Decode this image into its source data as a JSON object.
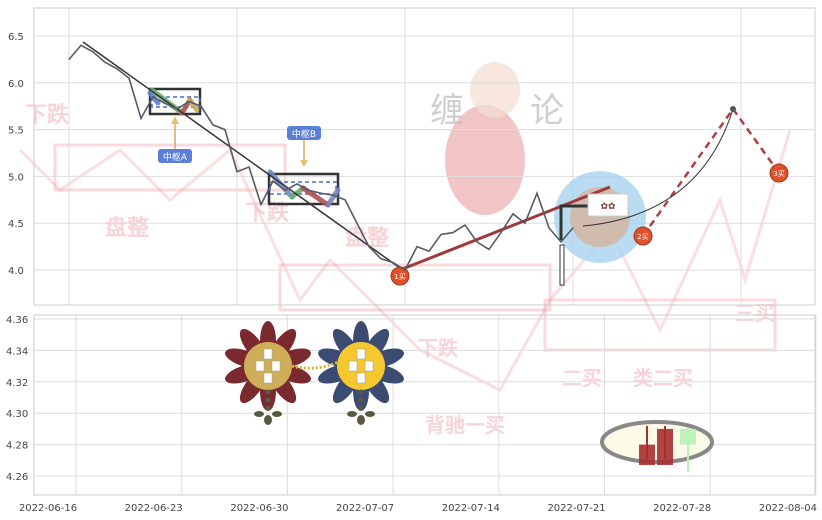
{
  "chart_data": [
    {
      "type": "line",
      "panel": "top",
      "yticks": [
        6.5,
        6.0,
        5.5,
        5.0,
        4.5,
        4.0
      ],
      "ylim": [
        3.7,
        6.8
      ],
      "xlim": [
        "2022-06-16",
        "2022-08-04"
      ],
      "grid": true,
      "series": [
        {
          "x": [
            "2022-06-16",
            "2022-06-17",
            "2022-06-18",
            "2022-06-19",
            "2022-06-20",
            "2022-06-21",
            "2022-06-22",
            "2022-06-23",
            "2022-06-24",
            "2022-06-25",
            "2022-06-26",
            "2022-06-27",
            "2022-06-28",
            "2022-06-29",
            "2022-06-30",
            "2022-07-01",
            "2022-07-02",
            "2022-07-03",
            "2022-07-04",
            "2022-07-05",
            "2022-07-06",
            "2022-07-07",
            "2022-07-08",
            "2022-07-09",
            "2022-07-10",
            "2022-07-11",
            "2022-07-12",
            "2022-07-13",
            "2022-07-14",
            "2022-07-15",
            "2022-07-16",
            "2022-07-17",
            "2022-07-18",
            "2022-07-19",
            "2022-07-20",
            "2022-07-21",
            "2022-07-22",
            "2022-07-23",
            "2022-07-24",
            "2022-07-25",
            "2022-07-26",
            "2022-07-27",
            "2022-07-28"
          ],
          "y": [
            6.25,
            6.4,
            6.33,
            6.22,
            6.15,
            6.05,
            5.62,
            5.85,
            5.78,
            5.72,
            5.8,
            5.75,
            5.55,
            5.5,
            5.05,
            5.1,
            4.7,
            4.95,
            4.85,
            4.92,
            4.85,
            4.82,
            4.8,
            4.75,
            4.5,
            4.25,
            4.12,
            4.08,
            4.0,
            4.25,
            4.2,
            4.38,
            4.4,
            4.48,
            4.3,
            4.22,
            4.4,
            4.6,
            4.5,
            4.82,
            4.45,
            4.3,
            4.45
          ],
          "color": "#555a66"
        }
      ],
      "annotations": [
        {
          "text": "中枢A",
          "color": "#5b7fd8"
        },
        {
          "text": "中枢B",
          "color": "#5b7fd8"
        },
        {
          "text": "1买",
          "color": "#e0502a"
        },
        {
          "text": "2买",
          "color": "#e0502a"
        },
        {
          "text": "3买",
          "color": "#e0502a"
        }
      ]
    },
    {
      "type": "bar",
      "panel": "bottom",
      "yticks": [
        4.36,
        4.34,
        4.32,
        4.3,
        4.28,
        4.26
      ],
      "ylim": [
        4.25,
        4.365
      ],
      "xticks": [
        "2022-06-16",
        "2022-06-23",
        "2022-06-30",
        "2022-07-07",
        "2022-07-14",
        "2022-07-21",
        "2022-07-28",
        "2022-08-04"
      ],
      "grid": true
    }
  ],
  "watermark": [
    "下跌",
    "盘整",
    "下跌",
    "盘整",
    "下跌",
    "背驰一买",
    "二买",
    "类二买",
    "三买",
    "缠",
    "论"
  ],
  "colors": {
    "accent_red": "#b03a3a",
    "label_blue": "#5b7fd8",
    "marker": "#e0502a"
  }
}
